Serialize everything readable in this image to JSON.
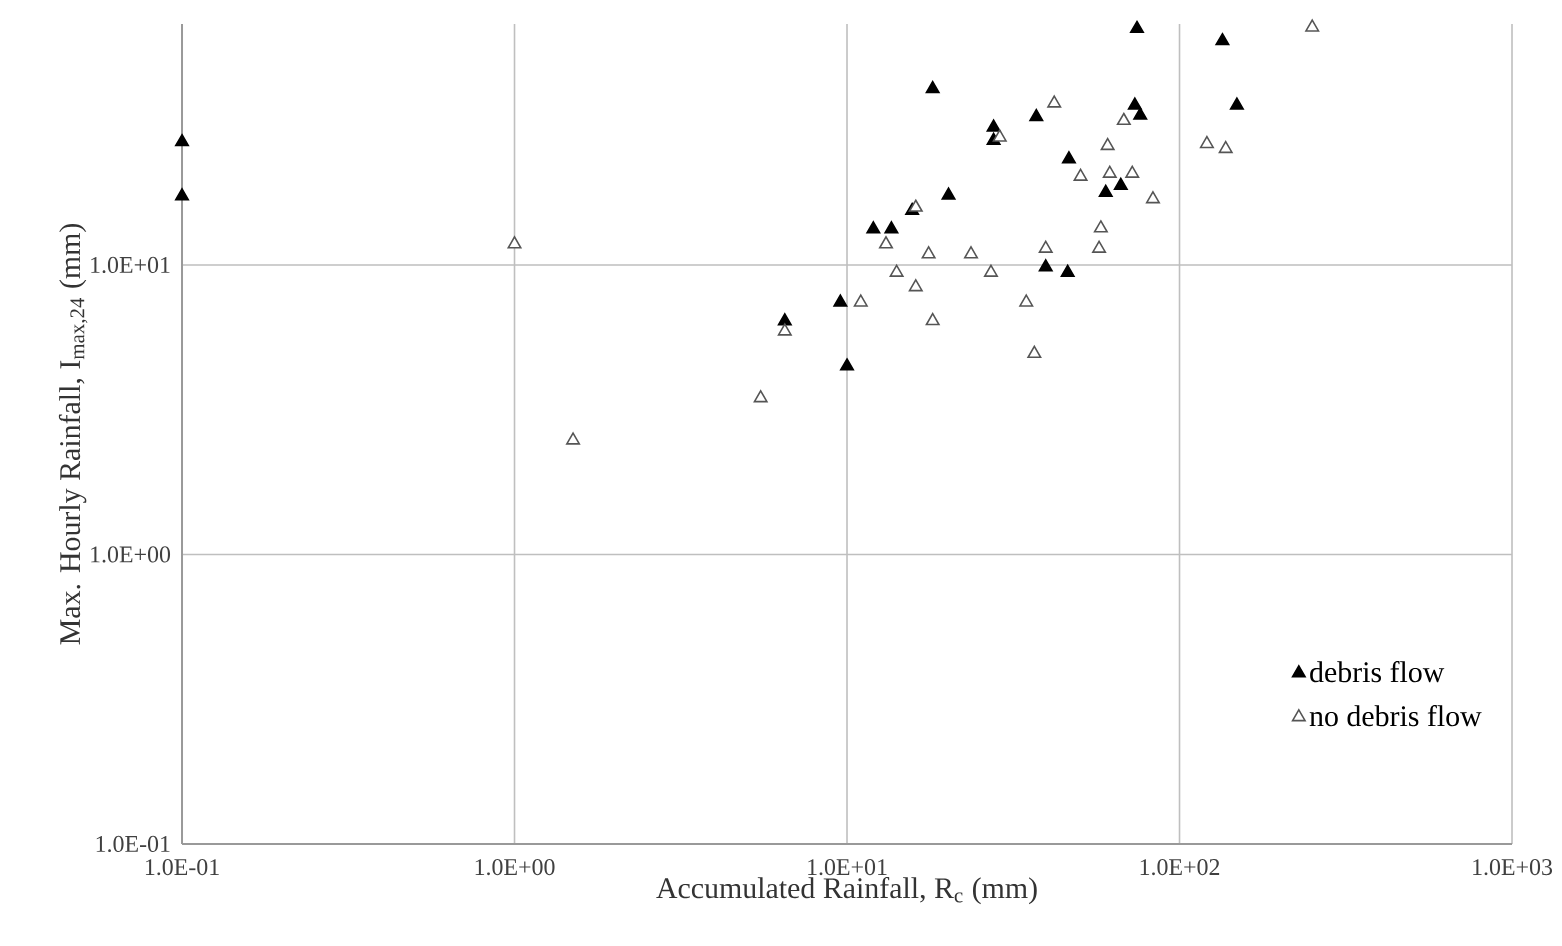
{
  "chart_data": {
    "type": "scatter",
    "log": "xy",
    "grid": true,
    "legend": "bottom right",
    "marker": "triangle",
    "xlabel": "Accumulated Rainfall, R$_{c}$ (mm)",
    "ylabel": "Max. Hourly Rainfall, I$_{max,24}$ (mm)",
    "xlim": [
      0.1,
      1000
    ],
    "ylim": [
      0.1,
      68
    ],
    "xticks": [
      {
        "value": 0.1,
        "label": "1.0E-01"
      },
      {
        "value": 1,
        "label": "1.0E+00"
      },
      {
        "value": 10,
        "label": "1.0E+01"
      },
      {
        "value": 100,
        "label": "1.0E+02"
      },
      {
        "value": 1000,
        "label": "1.0E+03"
      }
    ],
    "yticks": [
      {
        "value": 0.1,
        "label": "1.0E-01"
      },
      {
        "value": 1,
        "label": "1.0E+00"
      },
      {
        "value": 10,
        "label": "1.0E+01"
      }
    ],
    "series": [
      {
        "name": "debris flow",
        "color": "#000000",
        "x": [
          0.1,
          0.1,
          6.5,
          74.5,
          134.6,
          18.1,
          148.8,
          73.4,
          76.2,
          37.1,
          27.6,
          27.6,
          46.5,
          20.2,
          60,
          66.6,
          15.7,
          12.0,
          13.6,
          39.6,
          46.1,
          9.55,
          10.0
        ],
        "values": [
          26.6,
          17.3,
          6.4,
          65.5,
          59.4,
          40.6,
          35.6,
          35.6,
          32.9,
          32.5,
          29.9,
          26.9,
          23.2,
          17.4,
          17.8,
          18.8,
          15.4,
          13.3,
          13.3,
          9.84,
          9.42,
          7.43,
          4.47
        ]
      },
      {
        "name": "no debris flow",
        "color": "#555555",
        "x": [
          1.0,
          1.5,
          5.5,
          6.5,
          250.7,
          42.0,
          68,
          28.8,
          120.9,
          137.7,
          60.8,
          50.4,
          61.7,
          72.1,
          83.2,
          16.1,
          58.0,
          13.1,
          17.6,
          23.6,
          39.6,
          57.3,
          14.1,
          27.1,
          16.1,
          11.0,
          34.6,
          18.1,
          36.6
        ],
        "values": [
          11.8,
          2.48,
          3.47,
          5.9,
          66.2,
          36.2,
          31.5,
          27.6,
          26.2,
          25.2,
          25.8,
          20.2,
          20.7,
          20.7,
          16.9,
          15.8,
          13.4,
          11.8,
          10.9,
          10.9,
          11.4,
          11.4,
          9.42,
          9.42,
          8.39,
          7.43,
          7.43,
          6.41,
          4.94
        ]
      }
    ]
  }
}
